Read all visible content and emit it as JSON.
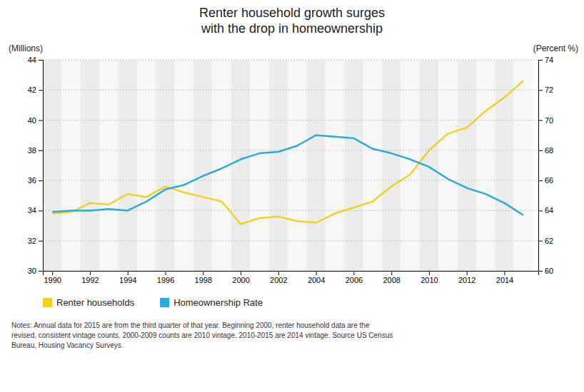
{
  "chart_data": {
    "type": "line",
    "title": "Renter household growth surges\nwith the drop in homeownership",
    "y_label": "(Millions)",
    "y2_label": "(Percent %)",
    "annotations": [
      "Notes: Annual data for 2015 are from the third quarter of that year. Beginning 2000, renter household data are the\nrevised, consistent vintage counts. 2000-2009 counts are 2010 vintage. 2010-2015 are 2014 vintage. Source US Census\nBureau, Housing Vacancy Surveys."
    ],
    "x": [
      1990,
      1991,
      1992,
      1993,
      1994,
      1995,
      1996,
      1997,
      1998,
      1999,
      2000,
      2001,
      2002,
      2003,
      2004,
      2005,
      2006,
      2007,
      2008,
      2009,
      2010,
      2011,
      2012,
      2013,
      2014,
      2015
    ],
    "series": [
      {
        "name": "Renter households",
        "color": "#f5d020",
        "values": [
          33.8,
          33.9,
          34.5,
          34.4,
          35.1,
          34.9,
          35.6,
          35.2,
          34.9,
          34.6,
          33.1,
          33.5,
          33.6,
          33.3,
          33.2,
          33.8,
          34.2,
          34.6,
          35.6,
          36.4,
          38.0,
          39.1,
          39.5,
          40.6,
          41.5,
          42.6
        ]
      },
      {
        "name": "Homeownership Rate",
        "color": "#29abe2",
        "axis": "y2",
        "values": [
          63.9,
          64.0,
          64.0,
          64.1,
          64.0,
          64.6,
          65.4,
          65.7,
          66.3,
          66.8,
          67.4,
          67.8,
          67.9,
          68.3,
          69.0,
          68.9,
          68.8,
          68.1,
          67.8,
          67.4,
          66.9,
          66.1,
          65.5,
          65.1,
          64.5,
          63.7
        ]
      }
    ],
    "xlim": [
      1989.5,
      2015.8
    ],
    "xticks": [
      1990,
      1992,
      1994,
      1996,
      1998,
      2000,
      2002,
      2004,
      2006,
      2008,
      2010,
      2012,
      2014
    ],
    "ylim": [
      30,
      44
    ],
    "yticks": [
      30,
      32,
      34,
      36,
      38,
      40,
      42,
      44
    ],
    "y2lim": [
      60,
      74
    ],
    "y2ticks": [
      60,
      62,
      64,
      66,
      68,
      70,
      72,
      74
    ],
    "grid": true,
    "legend": "bottom"
  }
}
